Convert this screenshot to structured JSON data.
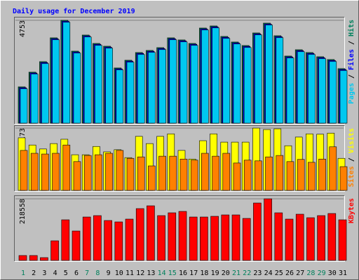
{
  "chart_data": {
    "type": "grouped-bar",
    "title": "Daily usage for December 2019",
    "categories": [
      "1",
      "2",
      "3",
      "4",
      "5",
      "6",
      "7",
      "8",
      "9",
      "10",
      "11",
      "12",
      "13",
      "14",
      "15",
      "16",
      "17",
      "18",
      "19",
      "20",
      "21",
      "22",
      "23",
      "24",
      "25",
      "26",
      "27",
      "28",
      "29",
      "30",
      "31"
    ],
    "weekend_label_color": "#00805c",
    "weekends": [
      0,
      6,
      7,
      13,
      14,
      20,
      21,
      27,
      28
    ],
    "panels": [
      {
        "ylim": [
          0,
          4753
        ],
        "yticks": [
          4753
        ],
        "series": [
          {
            "name": "Hits",
            "color": "#00805c",
            "values": [
              1681,
              2360,
              2845,
              3945,
              4753,
              3330,
              4074,
              3686,
              3557,
              2554,
              2910,
              3266,
              3363,
              3492,
              3945,
              3848,
              3686,
              4397,
              4494,
              4009,
              3751,
              3589,
              4171,
              4624,
              4042,
              3104,
              3395,
              3266,
              3072,
              2942,
              2522
            ]
          },
          {
            "name": "Files",
            "color": "#0000ff",
            "values": [
              1641,
              2320,
              2805,
              3905,
              4713,
              3290,
              4034,
              3646,
              3517,
              2514,
              2870,
              3226,
              3323,
              3452,
              3905,
              3808,
              3646,
              4357,
              4454,
              3969,
              3711,
              3549,
              4131,
              4584,
              4002,
              3064,
              3355,
              3226,
              3032,
              2902,
              2482
            ]
          },
          {
            "name": "Pages",
            "color": "#00c8f0",
            "values": [
              1591,
              2270,
              2755,
              3855,
              4663,
              3240,
              3984,
              3596,
              3467,
              2464,
              2820,
              3176,
              3273,
              3402,
              3855,
              3758,
              3596,
              4307,
              4404,
              3919,
              3661,
              3499,
              4081,
              4534,
              3952,
              3014,
              3305,
              3176,
              2982,
              2852,
              2432
            ]
          }
        ]
      },
      {
        "ylim": [
          0,
          173
        ],
        "yticks": [
          173
        ],
        "series": [
          {
            "name": "Visits",
            "color": "#ffff00",
            "values": [
              146,
              126,
              115,
              130,
              142,
              99,
              99,
              122,
              107,
              113,
              91,
              150,
              130,
              150,
              157,
              111,
              87,
              138,
              157,
              134,
              134,
              134,
              173,
              169,
              171,
              124,
              148,
              157,
              156,
              159,
              89
            ]
          },
          {
            "name": "Sites",
            "color": "#ff8000",
            "values": [
              111,
              103,
              101,
              103,
              126,
              80,
              97,
              99,
              103,
              111,
              89,
              93,
              68,
              95,
              95,
              87,
              84,
              103,
              95,
              103,
              76,
              84,
              82,
              93,
              97,
              80,
              86,
              78,
              87,
              121,
              66
            ]
          }
        ]
      },
      {
        "ylim": [
          0,
          218558
        ],
        "yticks": [
          218558
        ],
        "series": [
          {
            "name": "KBytes",
            "color": "#ff0000",
            "values": [
              17385,
              17385,
              9934,
              69540,
              144049,
              104311,
              153983,
              158950,
              141565,
              136597,
              146532,
              183786,
              193722,
              158950,
              168884,
              173850,
              153983,
              153983,
              156466,
              161433,
              161433,
              149016,
              203656,
              218558,
              168884,
              146532,
              163918,
              151501,
              158950,
              166400,
              144049
            ]
          }
        ]
      }
    ]
  }
}
